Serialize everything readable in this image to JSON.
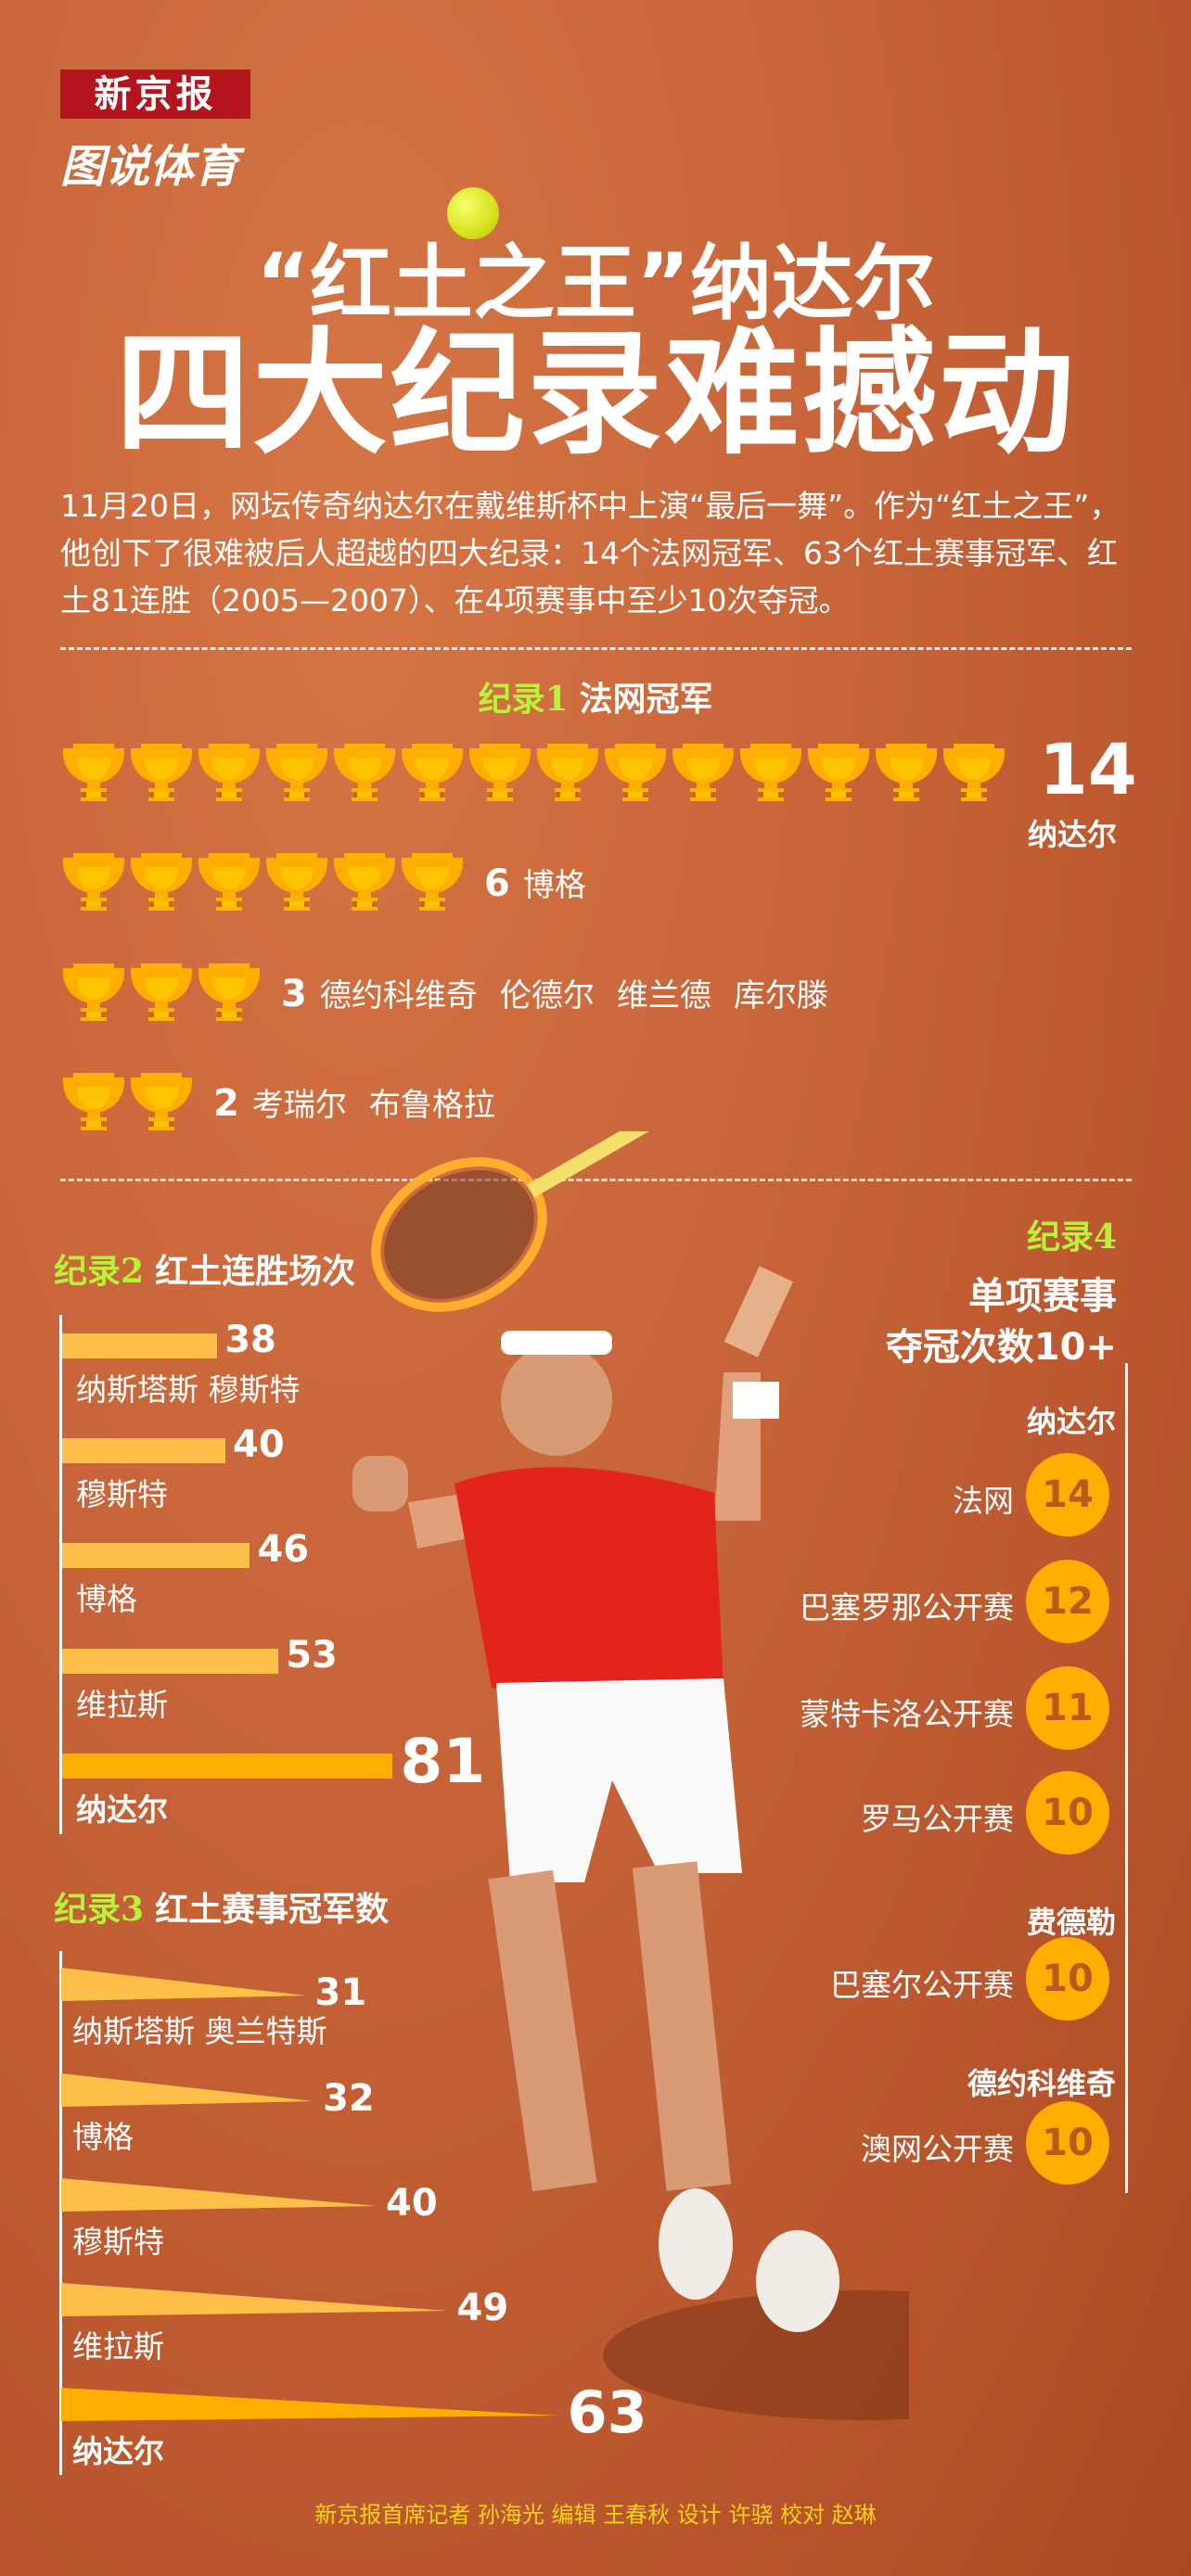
{
  "header": {
    "logo": "新京报",
    "sub_brand": "图说体育",
    "title_line1": "“红土之王”纳达尔",
    "title_line2": "四大纪录难撼动"
  },
  "intro": "11月20日，网坛传奇纳达尔在戴维斯杯中上演“最后一舞”。作为“红土之王”，他创下了很难被后人超越的四大纪录：14个法网冠军、63个红土赛事冠军、红土81连胜（2005—2007）、在4项赛事中至少10次夺冠。",
  "colors": {
    "trophy": "#ffae00",
    "bar": "#ffc04a",
    "highlight": "#ffae00",
    "record_label": "#b9f23a",
    "credit": "#f3d31a"
  },
  "chart_data": [
    {
      "type": "pictogram",
      "label_num": "纪录1",
      "title": "法网冠军",
      "icon": "trophy-icon",
      "rows": [
        {
          "value": 14,
          "names": [
            "纳达尔"
          ]
        },
        {
          "value": 6,
          "names": [
            "博格"
          ]
        },
        {
          "value": 3,
          "names": [
            "德约科维奇",
            "伦德尔",
            "维兰德",
            "库尔滕"
          ]
        },
        {
          "value": 2,
          "names": [
            "考瑞尔",
            "布鲁格拉"
          ]
        }
      ]
    },
    {
      "type": "bar",
      "orientation": "horizontal",
      "label_num": "纪录2",
      "title": "红土连胜场次",
      "categories": [
        "纳斯塔斯  穆斯特",
        "穆斯特",
        "博格",
        "维拉斯",
        "纳达尔"
      ],
      "values": [
        38,
        40,
        46,
        53,
        81
      ]
    },
    {
      "type": "bar",
      "orientation": "horizontal",
      "style": "triangle",
      "label_num": "纪录3",
      "title": "红土赛事冠军数",
      "categories": [
        "纳斯塔斯  奥兰特斯",
        "博格",
        "穆斯特",
        "维拉斯",
        "纳达尔"
      ],
      "values": [
        31,
        32,
        40,
        49,
        63
      ]
    },
    {
      "type": "table",
      "label_num": "纪录4",
      "title_line1": "单项赛事",
      "title_line2": "夺冠次数10+",
      "groups": [
        {
          "player": "纳达尔",
          "events": [
            {
              "name": "法网",
              "value": 14
            },
            {
              "name": "巴塞罗那公开赛",
              "value": 12
            },
            {
              "name": "蒙特卡洛公开赛",
              "value": 11
            },
            {
              "name": "罗马公开赛",
              "value": 10
            }
          ]
        },
        {
          "player": "费德勒",
          "events": [
            {
              "name": "巴塞尔公开赛",
              "value": 10
            }
          ]
        },
        {
          "player": "德约科维奇",
          "events": [
            {
              "name": "澳网公开赛",
              "value": 10
            }
          ]
        }
      ]
    }
  ],
  "credit": "新京报首席记者 孙海光  编辑 王春秋  设计 许骁  校对 赵琳"
}
